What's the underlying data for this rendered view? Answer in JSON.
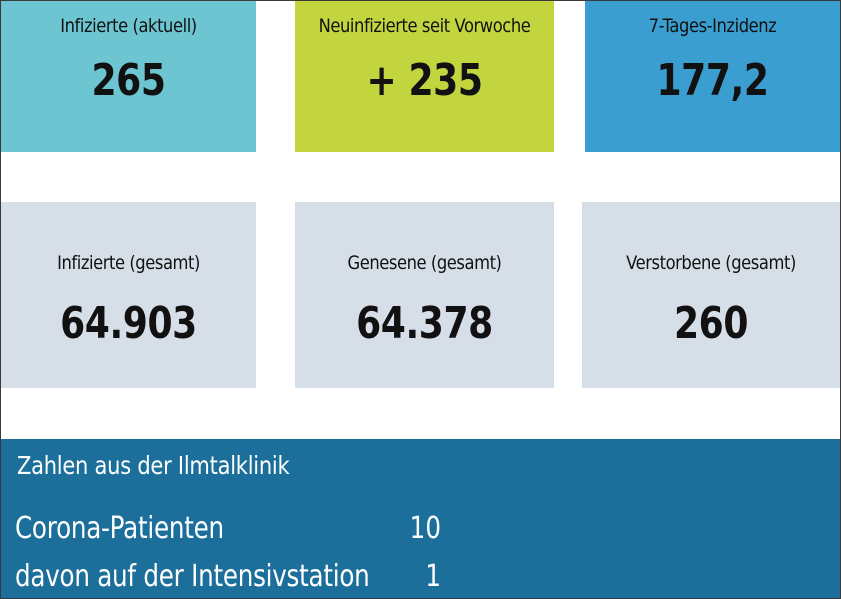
{
  "colors": {
    "tile_infected_current": "#6ec5d2",
    "tile_new_infected": "#c2d53f",
    "tile_incidence": "#3a9fd0",
    "tile_totals": "#d6dfe7",
    "clinic_panel": "#1c6f9a"
  },
  "top_row": [
    {
      "label": "Infizierte (aktuell)",
      "value": "265"
    },
    {
      "label": "Neuinfizierte seit Vorwoche",
      "value": "+ 235"
    },
    {
      "label": "7-Tages-Inzidenz",
      "value": "177,2"
    }
  ],
  "totals_row": [
    {
      "label": "Infizierte (gesamt)",
      "value": "64.903"
    },
    {
      "label": "Genesene (gesamt)",
      "value": "64.378"
    },
    {
      "label": "Verstorbene (gesamt)",
      "value": "260"
    }
  ],
  "clinic": {
    "title": "Zahlen aus der Ilmtalklinik",
    "rows": [
      {
        "label": "Corona-Patienten",
        "value": "10"
      },
      {
        "label": "davon auf der Intensivstation",
        "value": "1"
      }
    ]
  }
}
